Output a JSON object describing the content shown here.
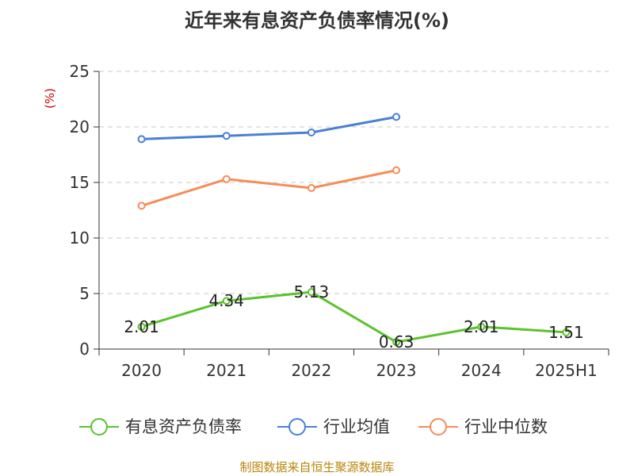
{
  "chart_data": {
    "type": "line",
    "title": "近年来有息资产负债率情况(%)",
    "ylabel": "(%)",
    "ylim": [
      0,
      25
    ],
    "yticks": [
      0,
      5,
      10,
      15,
      20,
      25
    ],
    "categories": [
      "2020",
      "2021",
      "2022",
      "2023",
      "2024",
      "2025H1"
    ],
    "grid": true,
    "legend_position": "bottom",
    "series": [
      {
        "name": "有息资产负债率",
        "color": "#5cc22d",
        "values": [
          2.01,
          4.34,
          5.13,
          0.63,
          2.01,
          1.51
        ],
        "data_labels": [
          "2.01",
          "4.34",
          "5.13",
          "0.63",
          "2.01",
          "1.51"
        ]
      },
      {
        "name": "行业均值",
        "color": "#4a7fd8",
        "values": [
          18.9,
          19.2,
          19.5,
          20.9,
          null,
          null
        ]
      },
      {
        "name": "行业中位数",
        "color": "#f58c5a",
        "values": [
          12.9,
          15.3,
          14.5,
          16.1,
          null,
          null
        ]
      }
    ]
  },
  "footer": {
    "source": "制图数据来自恒生聚源数据库"
  }
}
